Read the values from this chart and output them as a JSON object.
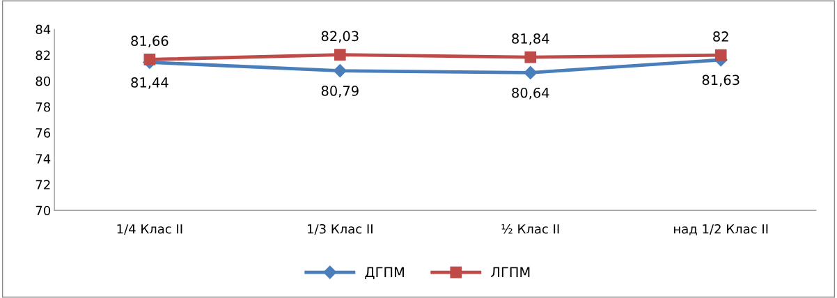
{
  "chart_data": {
    "type": "line",
    "categories": [
      "1/4 Клас II",
      "1/3 Клас II",
      "½ Клас II",
      "над 1/2 Клас II"
    ],
    "series": [
      {
        "name": "ДГПМ",
        "color": "#4a7ebb",
        "marker": "diamond",
        "values": [
          81.44,
          80.79,
          80.64,
          81.63
        ],
        "value_labels": [
          "81,44",
          "80,79",
          "80,64",
          "81,63"
        ]
      },
      {
        "name": "ЛГПМ",
        "color": "#be4b48",
        "marker": "square",
        "values": [
          81.66,
          82.03,
          81.84,
          82
        ],
        "value_labels": [
          "81,66",
          "82,03",
          "81,84",
          "82"
        ]
      }
    ],
    "ylim": [
      70,
      84
    ],
    "yticks": [
      70,
      72,
      74,
      76,
      78,
      80,
      82,
      84
    ],
    "grid": false,
    "legend": "bottom"
  }
}
